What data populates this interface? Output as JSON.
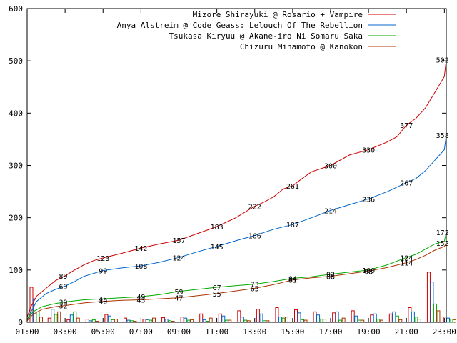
{
  "chart_data": {
    "type": "line",
    "title": "",
    "xlabel": "",
    "ylabel": "",
    "xlim": [
      1,
      23.1
    ],
    "ylim": [
      0,
      600
    ],
    "y_ticks": [
      "0",
      "100",
      "200",
      "300",
      "400",
      "500",
      "600"
    ],
    "x_ticks": [
      {
        "label": "01:00",
        "hour": 1
      },
      {
        "label": "03:00",
        "hour": 3
      },
      {
        "label": "05:00",
        "hour": 5
      },
      {
        "label": "07:00",
        "hour": 7
      },
      {
        "label": "09:00",
        "hour": 9
      },
      {
        "label": "11:00",
        "hour": 11
      },
      {
        "label": "13:00",
        "hour": 13
      },
      {
        "label": "15:00",
        "hour": 15
      },
      {
        "label": "17:00",
        "hour": 17
      },
      {
        "label": "19:00",
        "hour": 19
      },
      {
        "label": "21:00",
        "hour": 21
      },
      {
        "label": "23:00",
        "hour": 23
      }
    ],
    "grid": false,
    "legend_position": "top-right",
    "series": [
      {
        "name": "Mizore Shirayuki @ Rosario + Vampire",
        "color": "#cc0000",
        "points": [
          [
            1,
            10
          ],
          [
            1.2,
            30
          ],
          [
            1.5,
            50
          ],
          [
            2,
            65
          ],
          [
            2.5,
            80
          ],
          [
            3,
            89
          ],
          [
            3.5,
            100
          ],
          [
            4,
            110
          ],
          [
            4.5,
            118
          ],
          [
            5,
            123
          ],
          [
            6,
            132
          ],
          [
            7,
            142
          ],
          [
            8,
            150
          ],
          [
            9,
            157
          ],
          [
            10,
            170
          ],
          [
            11,
            183
          ],
          [
            12,
            200
          ],
          [
            13,
            222
          ],
          [
            13.5,
            230
          ],
          [
            14,
            240
          ],
          [
            14.5,
            255
          ],
          [
            15,
            261
          ],
          [
            15.5,
            275
          ],
          [
            16,
            288
          ],
          [
            17,
            300
          ],
          [
            18,
            320
          ],
          [
            19,
            330
          ],
          [
            20,
            345
          ],
          [
            20.5,
            355
          ],
          [
            21,
            377
          ],
          [
            21.5,
            390
          ],
          [
            22,
            410
          ],
          [
            22.5,
            440
          ],
          [
            23,
            470
          ],
          [
            23.1,
            502
          ]
        ],
        "labels": [
          {
            "hour": 2.9,
            "value": 89,
            "text": "89"
          },
          {
            "hour": 5,
            "value": 123,
            "text": "123"
          },
          {
            "hour": 7,
            "value": 142,
            "text": "142"
          },
          {
            "hour": 9,
            "value": 157,
            "text": "157"
          },
          {
            "hour": 11,
            "value": 183,
            "text": "183"
          },
          {
            "hour": 13,
            "value": 222,
            "text": "222"
          },
          {
            "hour": 15,
            "value": 261,
            "text": "261"
          },
          {
            "hour": 17,
            "value": 300,
            "text": "300"
          },
          {
            "hour": 19,
            "value": 330,
            "text": "330"
          },
          {
            "hour": 21,
            "value": 377,
            "text": "377"
          },
          {
            "hour": 22.9,
            "value": 502,
            "text": "502"
          }
        ]
      },
      {
        "name": "Anya Alstreim @ Code Geass: Lelouch Of The Rebellion",
        "color": "#0066cc",
        "points": [
          [
            1,
            5
          ],
          [
            1.2,
            20
          ],
          [
            1.5,
            40
          ],
          [
            2,
            55
          ],
          [
            2.5,
            63
          ],
          [
            3,
            69
          ],
          [
            3.5,
            78
          ],
          [
            4,
            88
          ],
          [
            5,
            99
          ],
          [
            6,
            104
          ],
          [
            7,
            108
          ],
          [
            8,
            115
          ],
          [
            9,
            124
          ],
          [
            10,
            135
          ],
          [
            11,
            145
          ],
          [
            12,
            156
          ],
          [
            13,
            166
          ],
          [
            14,
            178
          ],
          [
            15,
            187
          ],
          [
            16,
            200
          ],
          [
            17,
            214
          ],
          [
            18,
            225
          ],
          [
            19,
            236
          ],
          [
            20,
            250
          ],
          [
            21,
            267
          ],
          [
            21.5,
            275
          ],
          [
            22,
            290
          ],
          [
            22.5,
            310
          ],
          [
            23,
            330
          ],
          [
            23.1,
            358
          ]
        ],
        "labels": [
          {
            "hour": 2.9,
            "value": 69,
            "text": "69"
          },
          {
            "hour": 5,
            "value": 99,
            "text": "99"
          },
          {
            "hour": 7,
            "value": 108,
            "text": "108"
          },
          {
            "hour": 9,
            "value": 124,
            "text": "124"
          },
          {
            "hour": 11,
            "value": 145,
            "text": "145"
          },
          {
            "hour": 13,
            "value": 166,
            "text": "166"
          },
          {
            "hour": 15,
            "value": 187,
            "text": "187"
          },
          {
            "hour": 17,
            "value": 214,
            "text": "214"
          },
          {
            "hour": 19,
            "value": 236,
            "text": "236"
          },
          {
            "hour": 21,
            "value": 267,
            "text": "267"
          },
          {
            "hour": 22.9,
            "value": 358,
            "text": "358"
          }
        ]
      },
      {
        "name": "Tsukasa Kiryuu @ Akane-iro Ni Somaru Saka",
        "color": "#00aa00",
        "points": [
          [
            1,
            5
          ],
          [
            1.3,
            20
          ],
          [
            1.8,
            30
          ],
          [
            2.5,
            36
          ],
          [
            3,
            39
          ],
          [
            4,
            43
          ],
          [
            5,
            45
          ],
          [
            6,
            47
          ],
          [
            7,
            49
          ],
          [
            8,
            53
          ],
          [
            9,
            59
          ],
          [
            10,
            63
          ],
          [
            11,
            67
          ],
          [
            12,
            70
          ],
          [
            13,
            73
          ],
          [
            14,
            78
          ],
          [
            15,
            84
          ],
          [
            16,
            87
          ],
          [
            17,
            92
          ],
          [
            18,
            96
          ],
          [
            19,
            100
          ],
          [
            20,
            110
          ],
          [
            21,
            124
          ],
          [
            21.5,
            130
          ],
          [
            22,
            140
          ],
          [
            22.5,
            150
          ],
          [
            23,
            155
          ],
          [
            23.1,
            172
          ]
        ],
        "labels": [
          {
            "hour": 2.9,
            "value": 39,
            "text": "39"
          },
          {
            "hour": 5,
            "value": 45,
            "text": "45"
          },
          {
            "hour": 7,
            "value": 49,
            "text": "49"
          },
          {
            "hour": 9,
            "value": 59,
            "text": "59"
          },
          {
            "hour": 11,
            "value": 67,
            "text": "67"
          },
          {
            "hour": 13,
            "value": 73,
            "text": "73"
          },
          {
            "hour": 15,
            "value": 84,
            "text": "84"
          },
          {
            "hour": 17,
            "value": 92,
            "text": "92"
          },
          {
            "hour": 19,
            "value": 100,
            "text": "100"
          },
          {
            "hour": 21,
            "value": 124,
            "text": "124"
          },
          {
            "hour": 22.9,
            "value": 172,
            "text": "172"
          }
        ]
      },
      {
        "name": "Chizuru Minamoto @ Kanokon",
        "color": "#aa3300",
        "points": [
          [
            1,
            3
          ],
          [
            1.3,
            15
          ],
          [
            1.8,
            25
          ],
          [
            2.5,
            30
          ],
          [
            3,
            32
          ],
          [
            4,
            37
          ],
          [
            5,
            40
          ],
          [
            6,
            42
          ],
          [
            7,
            43
          ],
          [
            8,
            45
          ],
          [
            9,
            47
          ],
          [
            10,
            51
          ],
          [
            11,
            55
          ],
          [
            12,
            60
          ],
          [
            13,
            65
          ],
          [
            14,
            72
          ],
          [
            15,
            81
          ],
          [
            16,
            85
          ],
          [
            17,
            88
          ],
          [
            18,
            93
          ],
          [
            19,
            98
          ],
          [
            20,
            105
          ],
          [
            21,
            114
          ],
          [
            21.5,
            120
          ],
          [
            22,
            128
          ],
          [
            22.5,
            138
          ],
          [
            23,
            145
          ],
          [
            23.1,
            152
          ]
        ],
        "labels": [
          {
            "hour": 2.9,
            "value": 32,
            "text": "32"
          },
          {
            "hour": 5,
            "value": 40,
            "text": "40"
          },
          {
            "hour": 7,
            "value": 43,
            "text": "43"
          },
          {
            "hour": 9,
            "value": 47,
            "text": "47"
          },
          {
            "hour": 11,
            "value": 55,
            "text": "55"
          },
          {
            "hour": 13,
            "value": 65,
            "text": "65"
          },
          {
            "hour": 15,
            "value": 81,
            "text": "81"
          },
          {
            "hour": 17,
            "value": 88,
            "text": "88"
          },
          {
            "hour": 19,
            "value": 98,
            "text": "98"
          },
          {
            "hour": 21,
            "value": 114,
            "text": "114"
          },
          {
            "hour": 22.9,
            "value": 152,
            "text": "152"
          }
        ]
      }
    ],
    "bars": [
      {
        "hour": 1.15,
        "heights": [
          67,
          45,
          20,
          10
        ]
      },
      {
        "hour": 2.1,
        "heights": [
          8,
          25,
          15,
          20
        ]
      },
      {
        "hour": 3.1,
        "heights": [
          5,
          14,
          20,
          8
        ]
      },
      {
        "hour": 4.1,
        "heights": [
          6,
          3,
          5,
          2
        ]
      },
      {
        "hour": 5.1,
        "heights": [
          15,
          12,
          5,
          6
        ]
      },
      {
        "hour": 6.1,
        "heights": [
          8,
          4,
          3,
          2
        ]
      },
      {
        "hour": 7.1,
        "heights": [
          6,
          5,
          4,
          8
        ]
      },
      {
        "hour": 8.1,
        "heights": [
          9,
          6,
          3,
          2
        ]
      },
      {
        "hour": 9.1,
        "heights": [
          10,
          8,
          4,
          5
        ]
      },
      {
        "hour": 10.1,
        "heights": [
          16,
          5,
          2,
          8
        ]
      },
      {
        "hour": 11.1,
        "heights": [
          16,
          12,
          4,
          4
        ]
      },
      {
        "hour": 12.1,
        "heights": [
          22,
          10,
          4,
          3
        ]
      },
      {
        "hour": 13.1,
        "heights": [
          25,
          16,
          3,
          3
        ]
      },
      {
        "hour": 14.1,
        "heights": [
          28,
          10,
          8,
          10
        ]
      },
      {
        "hour": 15.1,
        "heights": [
          24,
          18,
          5,
          4
        ]
      },
      {
        "hour": 16.1,
        "heights": [
          20,
          14,
          6,
          6
        ]
      },
      {
        "hour": 17.1,
        "heights": [
          18,
          20,
          4,
          8
        ]
      },
      {
        "hour": 18.1,
        "heights": [
          22,
          12,
          4,
          4
        ]
      },
      {
        "hour": 19.1,
        "heights": [
          14,
          16,
          6,
          4
        ]
      },
      {
        "hour": 20.1,
        "heights": [
          16,
          20,
          12,
          5
        ]
      },
      {
        "hour": 21.1,
        "heights": [
          28,
          20,
          10,
          6
        ]
      },
      {
        "hour": 22.1,
        "heights": [
          96,
          77,
          35,
          22
        ]
      },
      {
        "hour": 22.95,
        "heights": [
          10,
          8,
          6,
          5
        ]
      }
    ]
  }
}
